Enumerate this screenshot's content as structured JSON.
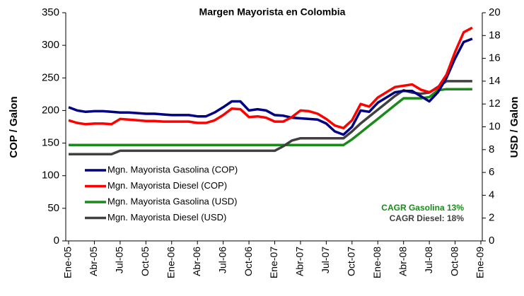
{
  "chart_data": {
    "type": "line",
    "title": "Margen Mayorista en Colombia",
    "ylabel": "COP / Galon",
    "y2label": "USD / Galon",
    "categories": [
      "Ene-05",
      null,
      null,
      "Abr-05",
      null,
      null,
      "Jul-05",
      null,
      null,
      "Oct-05",
      null,
      null,
      "Ene-06",
      null,
      null,
      "Abr-06",
      null,
      null,
      "Jul-06",
      null,
      null,
      "Oct-06",
      null,
      null,
      "Ene-07",
      null,
      null,
      "Abr-07",
      null,
      null,
      "Jul-07",
      null,
      null,
      "Oct-07",
      null,
      null,
      "Ene-08",
      null,
      null,
      "Abr-08",
      null,
      null,
      "Jul-08",
      null,
      null,
      "Oct-08",
      null,
      null,
      "Ene-09"
    ],
    "series": [
      {
        "name": "Mgn. Mayorista Gasolina (COP)",
        "color": "#000080",
        "axis": "y",
        "values": [
          205,
          200,
          198,
          199,
          199,
          198,
          197,
          197,
          196,
          195,
          195,
          194,
          193,
          193,
          193,
          191,
          191,
          197,
          205,
          214,
          214,
          200,
          202,
          200,
          193,
          192,
          189,
          188,
          187,
          186,
          180,
          168,
          163,
          175,
          200,
          198,
          212,
          220,
          228,
          230,
          230,
          222,
          214,
          228,
          250,
          280,
          305,
          310,
          null
        ]
      },
      {
        "name": "Mgn. Mayorista Diesel (COP)",
        "color": "#ff0000",
        "axis": "y",
        "values": [
          185,
          181,
          179,
          180,
          180,
          179,
          187,
          186,
          185,
          184,
          184,
          183,
          183,
          183,
          183,
          181,
          181,
          185,
          193,
          203,
          202,
          190,
          191,
          189,
          183,
          183,
          190,
          200,
          199,
          195,
          187,
          177,
          173,
          185,
          210,
          206,
          220,
          228,
          236,
          238,
          240,
          232,
          228,
          235,
          255,
          290,
          320,
          327,
          null
        ]
      },
      {
        "name": "Mgn. Mayorista Gasolina (USD)",
        "color": "#1a8a1a",
        "axis": "y2",
        "values": [
          8.4,
          8.4,
          8.4,
          8.4,
          8.4,
          8.4,
          8.4,
          8.4,
          8.4,
          8.4,
          8.4,
          8.4,
          8.4,
          8.4,
          8.4,
          8.4,
          8.4,
          8.4,
          8.4,
          8.4,
          8.4,
          8.4,
          8.4,
          8.4,
          8.4,
          8.4,
          8.4,
          8.4,
          8.4,
          8.4,
          8.4,
          8.4,
          8.4,
          8.9,
          9.5,
          10.1,
          10.7,
          11.3,
          11.9,
          12.5,
          12.5,
          12.5,
          12.6,
          13.2,
          13.3,
          13.3,
          13.3,
          13.3,
          null
        ]
      },
      {
        "name": "Mgn. Mayorista Diesel (USD)",
        "color": "#404040",
        "axis": "y2",
        "values": [
          7.6,
          7.6,
          7.6,
          7.6,
          7.6,
          7.6,
          7.9,
          7.9,
          7.9,
          7.9,
          7.9,
          7.9,
          7.9,
          7.9,
          7.9,
          7.9,
          7.9,
          7.9,
          7.9,
          7.9,
          7.9,
          7.9,
          7.9,
          7.9,
          7.9,
          8.3,
          8.8,
          9.0,
          9.0,
          9.0,
          9.0,
          9.0,
          9.0,
          9.6,
          10.3,
          10.9,
          11.5,
          12.1,
          12.7,
          13.2,
          13.0,
          12.9,
          13.0,
          13.5,
          14.0,
          14.0,
          14.0,
          14.0,
          null
        ]
      }
    ],
    "ylim": [
      0,
      350
    ],
    "yticks": [
      0,
      50,
      100,
      150,
      200,
      250,
      300,
      350
    ],
    "y2lim": [
      0,
      20
    ],
    "y2ticks": [
      0,
      2,
      4,
      6,
      8,
      10,
      12,
      14,
      16,
      18,
      20
    ],
    "grid": false,
    "legend": "left",
    "annotations": [
      {
        "text": "CAGR Gasolina 13%",
        "color": "#1a8a1a"
      },
      {
        "text": "CAGR Diesel: 18%",
        "color": "#404040"
      }
    ]
  }
}
